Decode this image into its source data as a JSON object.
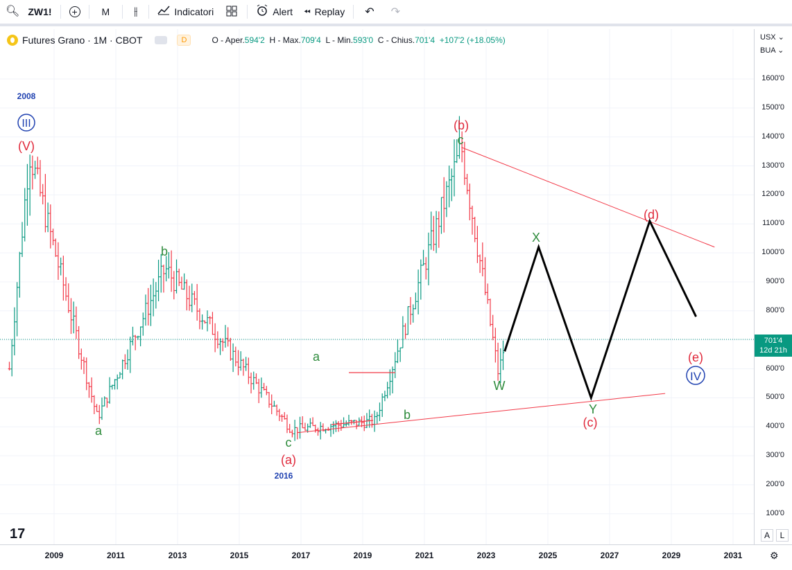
{
  "toolbar": {
    "symbol": "ZW1!",
    "interval": "M",
    "indicators_label": "Indicatori",
    "alert_label": "Alert",
    "replay_label": "Replay"
  },
  "legend": {
    "title": "Futures Grano · 1M · CBOT",
    "d_badge": "D",
    "open_label": "O - Aper.",
    "open": "594'2",
    "high_label": "H - Max.",
    "high": "709'4",
    "low_label": "L - Min.",
    "low": "593'0",
    "close_label": "C - Chius.",
    "close": "701'4",
    "change": "+107'2 (+18.05%)"
  },
  "price_scale": {
    "currency": "USX",
    "unit": "BUA",
    "labels": [
      "1600'0",
      "1500'0",
      "1400'0",
      "1300'0",
      "1200'0",
      "1100'0",
      "1000'0",
      "900'0",
      "800'0",
      "700'0",
      "600'0",
      "500'0",
      "400'0",
      "300'0",
      "200'0",
      "100'0"
    ],
    "current_price": "701'4",
    "countdown": "12d 21h"
  },
  "time_scale": {
    "years": [
      "2009",
      "2011",
      "2013",
      "2015",
      "2017",
      "2019",
      "2021",
      "2023",
      "2025",
      "2027",
      "2029",
      "2031"
    ]
  },
  "annotations": {
    "year_2008": "2008",
    "wave_III": "III",
    "wave_V": "(V)",
    "wave_a1": "a",
    "wave_b1": "b",
    "wave_a2": "a",
    "wave_c1": "c",
    "wave_a_paren": "(a)",
    "year_2016": "2016",
    "wave_b2": "b",
    "wave_b_paren": "(b)",
    "wave_c2": "c",
    "wave_W": "W",
    "wave_X": "X",
    "wave_Y": "Y",
    "wave_c_paren": "(c)",
    "wave_d_paren": "(d)",
    "wave_e_paren": "(e)",
    "wave_IV": "IV"
  },
  "scale_buttons": {
    "auto": "A",
    "log": "L"
  },
  "colors": {
    "up": "#089981",
    "down": "#f23645",
    "wave_red": "#e0283a",
    "wave_green": "#2e8b3c",
    "wave_blue": "#1e40b0",
    "projection": "#000000"
  },
  "chart_data": {
    "type": "ohlc-bars",
    "instrument": "ZW1! monthly",
    "ylim": [
      0,
      1700
    ],
    "xlim": [
      2007.5,
      2031.5
    ],
    "key_points": [
      {
        "x": 2008.2,
        "y": 1349,
        "label": "(V)"
      },
      {
        "x": 2010.4,
        "y": 430,
        "label": "a"
      },
      {
        "x": 2012.6,
        "y": 945,
        "label": "b"
      },
      {
        "x": 2016.7,
        "y": 390,
        "label": "c / (a)"
      },
      {
        "x": 2019.4,
        "y": 420,
        "label": "b"
      },
      {
        "x": 2022.2,
        "y": 1364,
        "label": "c / (b)"
      },
      {
        "x": 2023.4,
        "y": 580,
        "label": "W"
      }
    ],
    "projection": [
      {
        "x": 2023.6,
        "y": 660
      },
      {
        "x": 2024.7,
        "y": 1020,
        "label": "X"
      },
      {
        "x": 2026.4,
        "y": 500,
        "label": "Y / (c)"
      },
      {
        "x": 2028.3,
        "y": 1110,
        "label": "(d)"
      },
      {
        "x": 2029.8,
        "y": 780,
        "label": "(e)"
      }
    ],
    "upper_trendline": [
      {
        "x": 2022.2,
        "y": 1364
      },
      {
        "x": 2030.4,
        "y": 1020
      }
    ],
    "lower_trendline": [
      {
        "x": 2016.9,
        "y": 380
      },
      {
        "x": 2028.8,
        "y": 515
      }
    ]
  }
}
